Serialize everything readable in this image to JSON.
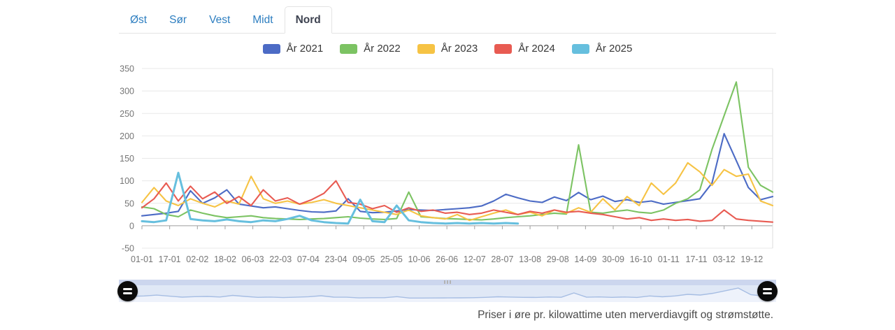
{
  "tabs": {
    "items": [
      {
        "id": "ost",
        "label": "Øst",
        "active": false
      },
      {
        "id": "sor",
        "label": "Sør",
        "active": false
      },
      {
        "id": "vest",
        "label": "Vest",
        "active": false
      },
      {
        "id": "midt",
        "label": "Midt",
        "active": false
      },
      {
        "id": "nord",
        "label": "Nord",
        "active": true
      }
    ]
  },
  "legend": [
    {
      "label": "År 2021",
      "color": "#4C6BC5"
    },
    {
      "label": "År 2022",
      "color": "#7CC363"
    },
    {
      "label": "År 2023",
      "color": "#F6C344"
    },
    {
      "label": "År 2024",
      "color": "#E85B52"
    },
    {
      "label": "År 2025",
      "color": "#66BFDE"
    }
  ],
  "chart_data": {
    "type": "line",
    "title": "",
    "xlabel": "",
    "ylabel": "",
    "ylim": [
      -50,
      350
    ],
    "y_ticks": [
      350,
      300,
      250,
      200,
      150,
      100,
      50,
      0,
      -50
    ],
    "x_tick_labels": [
      "01-01",
      "17-01",
      "02-02",
      "18-02",
      "06-03",
      "22-03",
      "07-04",
      "23-04",
      "09-05",
      "25-05",
      "10-06",
      "26-06",
      "12-07",
      "28-07",
      "13-08",
      "29-08",
      "14-09",
      "30-09",
      "16-10",
      "01-11",
      "17-11",
      "03-12",
      "19-12"
    ],
    "x_tick_interval_days": 16,
    "x_range_days": 364,
    "sampling": "weekly estimates, day = index * 7, values in øre/kWh",
    "grid": true,
    "legend_position": "top-center",
    "series": [
      {
        "name": "År 2021",
        "color": "#4C6BC5",
        "values": [
          22,
          25,
          28,
          32,
          78,
          50,
          62,
          80,
          48,
          44,
          40,
          42,
          38,
          34,
          31,
          30,
          33,
          60,
          32,
          29,
          30,
          33,
          36,
          35,
          34,
          36,
          38,
          40,
          44,
          55,
          70,
          62,
          55,
          52,
          64,
          56,
          74,
          58,
          66,
          54,
          58,
          52,
          55,
          48,
          52,
          56,
          60,
          95,
          205,
          145,
          85,
          58,
          65
        ]
      },
      {
        "name": "År 2022",
        "color": "#7CC363",
        "values": [
          42,
          38,
          25,
          20,
          35,
          28,
          22,
          18,
          20,
          22,
          18,
          16,
          15,
          14,
          15,
          16,
          18,
          20,
          17,
          15,
          14,
          16,
          75,
          20,
          18,
          16,
          15,
          14,
          13,
          15,
          18,
          20,
          22,
          25,
          28,
          26,
          180,
          30,
          28,
          32,
          35,
          30,
          28,
          35,
          50,
          60,
          80,
          170,
          245,
          320,
          130,
          90,
          75
        ]
      },
      {
        "name": "År 2023",
        "color": "#F6C344",
        "values": [
          52,
          85,
          55,
          45,
          60,
          50,
          42,
          55,
          48,
          110,
          60,
          50,
          55,
          48,
          52,
          58,
          50,
          45,
          40,
          35,
          30,
          25,
          35,
          22,
          18,
          15,
          25,
          12,
          20,
          28,
          35,
          25,
          30,
          22,
          35,
          28,
          40,
          30,
          60,
          35,
          65,
          45,
          95,
          70,
          95,
          140,
          120,
          90,
          125,
          110,
          115,
          55,
          45
        ]
      },
      {
        "name": "År 2024",
        "color": "#E85B52",
        "values": [
          40,
          60,
          95,
          55,
          88,
          60,
          75,
          50,
          65,
          45,
          80,
          55,
          62,
          48,
          58,
          72,
          100,
          52,
          48,
          38,
          45,
          30,
          40,
          32,
          35,
          28,
          30,
          25,
          28,
          35,
          30,
          25,
          32,
          28,
          35,
          30,
          32,
          28,
          25,
          20,
          15,
          18,
          12,
          15,
          12,
          14,
          10,
          12,
          35,
          15,
          12,
          10,
          8
        ]
      },
      {
        "name": "År 2025",
        "color": "#66BFDE",
        "values": [
          10,
          8,
          12,
          118,
          15,
          12,
          10,
          14,
          10,
          8,
          12,
          10,
          15,
          22,
          12,
          8,
          6,
          5,
          58,
          10,
          8,
          45,
          12,
          8,
          6,
          5,
          6,
          5,
          6,
          5,
          6,
          5
        ]
      }
    ]
  },
  "slider": {
    "selected_range": "full",
    "track_color": "#e0e8f6",
    "selected_bar_color": "#ccd6ee",
    "navigator_line_color": "#a6bde3",
    "handle_color": "#0b0b0b"
  },
  "caption": "Priser i øre pr. kilowattime uten merverdiavgift og strømstøtte."
}
